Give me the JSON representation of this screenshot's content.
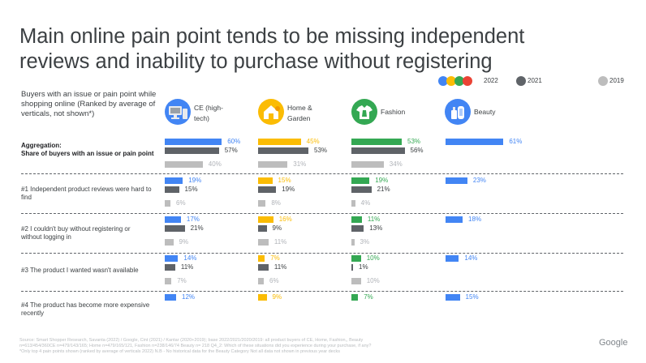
{
  "title_lines": [
    "Main online pain point tends to be missing independent",
    "reviews and inability to purchase without registering"
  ],
  "legend": {
    "y2022": "2022",
    "y2021": "2021",
    "y2019": "2019"
  },
  "colors": {
    "series_2022": [
      "#4285f4",
      "#fbbc04",
      "#34a853",
      "#4285f4"
    ],
    "series_2021": "#5f6368",
    "series_2019": "#bdbdbd",
    "legend_dots": [
      "#4285f4",
      "#fbbc04",
      "#34a853",
      "#ea4335"
    ]
  },
  "side_header": "Buyers with an issue or pain point while shopping online (Ranked by average of verticals, not shown*)",
  "categories": [
    {
      "label": "CE (high-tech)",
      "icon": "monitor-icon"
    },
    {
      "label": "Home & Garden",
      "icon": "house-icon"
    },
    {
      "label": "Fashion",
      "icon": "clothing-icon"
    },
    {
      "label": "Beauty",
      "icon": "cosmetics-icon"
    }
  ],
  "rows": [
    {
      "label": "Aggregation:",
      "sublabel": "Share of buyers with an issue or pain point"
    },
    {
      "label": "#1 Independent product reviews were hard to find"
    },
    {
      "label": "#2 I couldn't buy without registering or without logging in"
    },
    {
      "label": "#3 The product I wanted wasn't available"
    },
    {
      "label": "#4 The product has become more expensive recently"
    }
  ],
  "chart_data": {
    "type": "bar",
    "orientation": "horizontal",
    "categories": [
      "CE (high-tech)",
      "Home & Garden",
      "Fashion",
      "Beauty"
    ],
    "rows": [
      "Aggregation",
      "#1",
      "#2",
      "#3",
      "#4"
    ],
    "series": [
      {
        "name": "2022",
        "values": [
          [
            60,
            45,
            53,
            61
          ],
          [
            19,
            15,
            19,
            23
          ],
          [
            17,
            16,
            11,
            18
          ],
          [
            14,
            7,
            10,
            14
          ],
          [
            12,
            9,
            7,
            15
          ]
        ]
      },
      {
        "name": "2021",
        "values": [
          [
            57,
            53,
            56,
            null
          ],
          [
            15,
            19,
            21,
            null
          ],
          [
            21,
            9,
            13,
            null
          ],
          [
            11,
            11,
            1,
            null
          ],
          [
            null,
            null,
            null,
            null
          ]
        ]
      },
      {
        "name": "2019",
        "values": [
          [
            40,
            31,
            34,
            null
          ],
          [
            6,
            8,
            4,
            null
          ],
          [
            9,
            11,
            3,
            null
          ],
          [
            7,
            6,
            10,
            null
          ],
          [
            null,
            null,
            null,
            null
          ]
        ]
      }
    ],
    "value_suffix": "%"
  },
  "footnote_lines": [
    "Source: Smart Shopper Research, Savanta (2022) / Google, Cint (2021) / Kantar (2020+2019); base 2022/2021/2020/2019: all product buyers of CE, Home, Fashion,, Beauty",
    "n=613/454/360CE n=479/143/165; Home n=479/165/121, Fashion n=238/146/74 Beauty n= 218  Q4_2: Which of these situations did you experience during your purchase, if any?",
    "*Only top 4 pain points shown (ranked by average of verticals 2022) N.B - No historical data for the Beauty Category Not all data not shown in previous year decks"
  ],
  "logo": "Google"
}
